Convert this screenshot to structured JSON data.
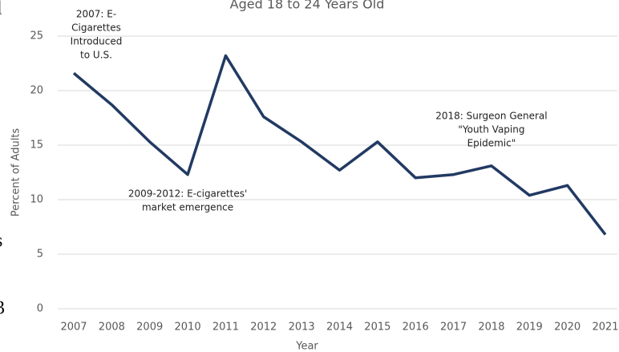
{
  "chart_data": {
    "type": "line",
    "title": "Aged 18 to 24 Years Old",
    "x_label": "Year",
    "y_label": "Percent of Adults",
    "categories": [
      "2007",
      "2008",
      "2009",
      "2010",
      "2011",
      "2012",
      "2013",
      "2014",
      "2015",
      "2016",
      "2017",
      "2018",
      "2019",
      "2020",
      "2021"
    ],
    "series": [
      {
        "name": "Percent of Adults",
        "color": "#223a63",
        "values": [
          21.6,
          18.7,
          15.3,
          12.3,
          23.2,
          17.6,
          15.3,
          12.7,
          15.3,
          12.0,
          12.3,
          13.1,
          10.4,
          11.3,
          6.8
        ]
      }
    ],
    "ylim": [
      0,
      25
    ],
    "yticks": [
      0,
      5,
      10,
      15,
      20,
      25
    ],
    "grid": true,
    "annotations": [
      {
        "category": "2007",
        "lines": [
          "2007: E-",
          "Cigarettes",
          "Introduced",
          "to U.S."
        ]
      },
      {
        "category": "2010",
        "lines": [
          "2009-2012: E-cigarettes'",
          "market emergence"
        ]
      },
      {
        "category": "2018",
        "lines": [
          "2018: Surgeon General",
          "\"Youth Vaping",
          "Epidemic\""
        ]
      }
    ]
  },
  "margin_text": [
    "l",
    "s",
    "3"
  ]
}
